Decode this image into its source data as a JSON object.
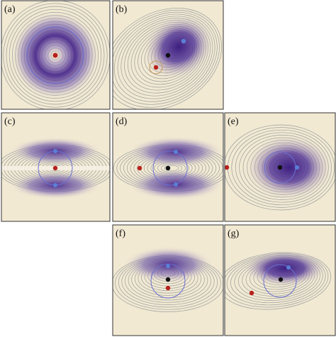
{
  "figure": {
    "background": "#f2e9d3",
    "contour_color": "#7f8b8e",
    "density_color": "#4a2a8c",
    "circle_color": "#6b6fd0",
    "point_colors": {
      "red": "#b8201c",
      "black": "#111111",
      "blue": "#5b7fd6"
    },
    "panels": [
      {
        "label": "(a)",
        "pattern": "radial-ring",
        "points": [
          "red"
        ]
      },
      {
        "label": "(b)",
        "pattern": "crescent-with-source",
        "points": [
          "blue",
          "black",
          "red"
        ]
      },
      {
        "label": "(c)",
        "pattern": "two-lobes-symmetric",
        "points": [
          "blue",
          "red",
          "blue"
        ]
      },
      {
        "label": "(d)",
        "pattern": "two-lobes-shifted",
        "points": [
          "blue",
          "red",
          "black",
          "blue"
        ]
      },
      {
        "label": "(e)",
        "pattern": "right-lobe",
        "points": [
          "red",
          "black",
          "blue"
        ]
      },
      {
        "label": "(f)",
        "pattern": "upper-lobe",
        "points": [
          "blue",
          "black",
          "red"
        ]
      },
      {
        "label": "(g)",
        "pattern": "upper-lobe-tail",
        "points": [
          "blue",
          "black",
          "red"
        ]
      }
    ]
  }
}
